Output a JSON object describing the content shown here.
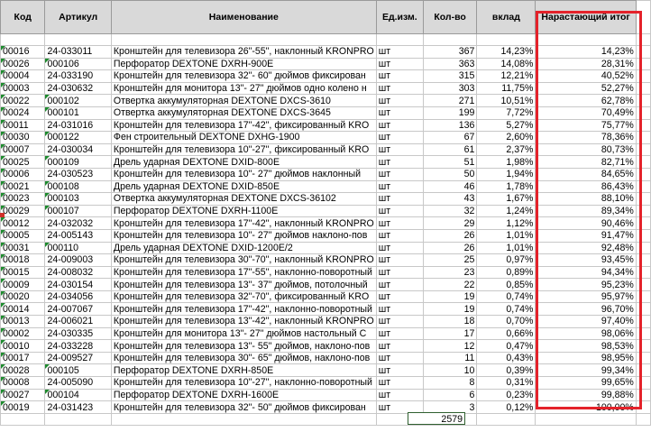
{
  "headers": {
    "code": "Код",
    "article": "Артикул",
    "name": "Наименование",
    "unit": "Ед.изм.",
    "qty": "Кол-во",
    "share": "вклад",
    "cumulative": "Нарастающий итог"
  },
  "rows": [
    {
      "code": "00016",
      "article": "24-033011",
      "name": "Кронштейн для телевизора 26\"-55\", наклонный KRONPRO",
      "unit": "шт",
      "qty": "367",
      "share": "14,23%",
      "cumulative": "14,23%"
    },
    {
      "code": "00026",
      "article": "000106",
      "name": "Перфоратор DEXTONE DXRH-900E",
      "unit": "шт",
      "qty": "363",
      "share": "14,08%",
      "cumulative": "28,31%"
    },
    {
      "code": "00004",
      "article": "24-033190",
      "name": "Кронштейн для телевизора  32\"- 60\" дюймов фиксирован",
      "unit": "шт",
      "qty": "315",
      "share": "12,21%",
      "cumulative": "40,52%"
    },
    {
      "code": "00003",
      "article": "24-030632",
      "name": "Кронштейн для монитора 13\"- 27\" дюймов одно колено н",
      "unit": "шт",
      "qty": "303",
      "share": "11,75%",
      "cumulative": "52,27%"
    },
    {
      "code": "00022",
      "article": "000102",
      "name": "Отвертка аккумуляторная DEXTONE DXCS-3610",
      "unit": "шт",
      "qty": "271",
      "share": "10,51%",
      "cumulative": "62,78%"
    },
    {
      "code": "00024",
      "article": "000101",
      "name": "Отвертка аккумуляторная DEXTONE DXCS-3645",
      "unit": "шт",
      "qty": "199",
      "share": "7,72%",
      "cumulative": "70,49%"
    },
    {
      "code": "00011",
      "article": "24-031016",
      "name": "Кронштейн для телевизора 17\"-42\", фиксированный KRO",
      "unit": "шт",
      "qty": "136",
      "share": "5,27%",
      "cumulative": "75,77%"
    },
    {
      "code": "00030",
      "article": "000122",
      "name": "Фен строительный  DEXTONE DXHG-1900",
      "unit": "шт",
      "qty": "67",
      "share": "2,60%",
      "cumulative": "78,36%"
    },
    {
      "code": "00007",
      "article": "24-030034",
      "name": "Кронштейн для телевизора 10\"-27\", фиксированный KRO",
      "unit": "шт",
      "qty": "61",
      "share": "2,37%",
      "cumulative": "80,73%"
    },
    {
      "code": "00025",
      "article": "000109",
      "name": "Дрель ударная DEXTONE DXID-800E",
      "unit": "шт",
      "qty": "51",
      "share": "1,98%",
      "cumulative": "82,71%"
    },
    {
      "code": "00006",
      "article": "24-030523",
      "name": "Кронштейн для телевизора 10\"- 27\" дюймов  наклонный",
      "unit": "шт",
      "qty": "50",
      "share": "1,94%",
      "cumulative": "84,65%"
    },
    {
      "code": "00021",
      "article": "000108",
      "name": "Дрель ударная DEXTONE DXID-850E",
      "unit": "шт",
      "qty": "46",
      "share": "1,78%",
      "cumulative": "86,43%"
    },
    {
      "code": "00023",
      "article": "000103",
      "name": "Отвертка аккумуляторная DEXTONE DXCS-36102",
      "unit": "шт",
      "qty": "43",
      "share": "1,67%",
      "cumulative": "88,10%"
    },
    {
      "code": "00029",
      "article": "000107",
      "name": "Перфоратор DEXTONE DXRH-1100E",
      "unit": "шт",
      "qty": "32",
      "share": "1,24%",
      "cumulative": "89,34%"
    },
    {
      "code": "00012",
      "article": "24-032032",
      "name": "Кронштейн для телевизора 17\"-42\", наклонный KRONPRO",
      "unit": "шт",
      "qty": "29",
      "share": "1,12%",
      "cumulative": "90,46%"
    },
    {
      "code": "00005",
      "article": "24-005143",
      "name": "Кронштейн для телевизора 10\"- 27\" дюймов  наклоно-пов",
      "unit": "шт",
      "qty": "26",
      "share": "1,01%",
      "cumulative": "91,47%"
    },
    {
      "code": "00031",
      "article": "000110",
      "name": "Дрель ударная DEXTONE DXID-1200E/2",
      "unit": "шт",
      "qty": "26",
      "share": "1,01%",
      "cumulative": "92,48%"
    },
    {
      "code": "00018",
      "article": "24-009003",
      "name": "Кронштейн для телевизора 30\"-70\", наклонный KRONPRO",
      "unit": "шт",
      "qty": "25",
      "share": "0,97%",
      "cumulative": "93,45%"
    },
    {
      "code": "00015",
      "article": "24-008032",
      "name": "Кронштейн для телевизора 17\"-55\", наклонно-поворотный",
      "unit": "шт",
      "qty": "23",
      "share": "0,89%",
      "cumulative": "94,34%"
    },
    {
      "code": "00009",
      "article": "24-030154",
      "name": "Кронштейн для телевизора 13\"- 37\" дюймов, потолочный",
      "unit": "шт",
      "qty": "22",
      "share": "0,85%",
      "cumulative": "95,23%"
    },
    {
      "code": "00020",
      "article": "24-034056",
      "name": "Кронштейн для телевизора 32\"-70\", фиксированный KRO",
      "unit": "шт",
      "qty": "19",
      "share": "0,74%",
      "cumulative": "95,97%"
    },
    {
      "code": "00014",
      "article": "24-007067",
      "name": "Кронштейн для телевизора 17\"-42\", наклонно-поворотный",
      "unit": "шт",
      "qty": "19",
      "share": "0,74%",
      "cumulative": "96,70%"
    },
    {
      "code": "00013",
      "article": "24-006021",
      "name": "Кронштейн для телевизора 13\"-42\", наклонный KRONPRO",
      "unit": "шт",
      "qty": "18",
      "share": "0,70%",
      "cumulative": "97,40%"
    },
    {
      "code": "00002",
      "article": "24-030335",
      "name": "Кронштейн для монитора 13\"- 27\" дюймов настольный  C",
      "unit": "шт",
      "qty": "17",
      "share": "0,66%",
      "cumulative": "98,06%"
    },
    {
      "code": "00010",
      "article": "24-033228",
      "name": "Кронштейн для телевизора 13\"- 55\" дюймов, наклоно-пов",
      "unit": "шт",
      "qty": "12",
      "share": "0,47%",
      "cumulative": "98,53%"
    },
    {
      "code": "00017",
      "article": "24-009527",
      "name": "Кронштейн для телевизора 30\"- 65\" дюймов, наклоно-пов",
      "unit": "шт",
      "qty": "11",
      "share": "0,43%",
      "cumulative": "98,95%"
    },
    {
      "code": "00028",
      "article": "000105",
      "name": "Перфоратор DEXTONE DXRH-850E",
      "unit": "шт",
      "qty": "10",
      "share": "0,39%",
      "cumulative": "99,34%"
    },
    {
      "code": "00008",
      "article": "24-005090",
      "name": "Кронштейн для телевизора 10\"-27\", наклонно-поворотный",
      "unit": "шт",
      "qty": "8",
      "share": "0,31%",
      "cumulative": "99,65%"
    },
    {
      "code": "00027",
      "article": "000104",
      "name": "Перфоратор DEXTONE DXRH-1600E",
      "unit": "шт",
      "qty": "6",
      "share": "0,23%",
      "cumulative": "99,88%"
    },
    {
      "code": "00019",
      "article": "24-031423",
      "name": "Кронштейн для телевизора 32\"- 50\" дюймов фиксирован",
      "unit": "шт",
      "qty": "3",
      "share": "0,12%",
      "cumulative": "100,00%"
    }
  ],
  "total": "2579",
  "colors": {
    "highlight": "#e4222a",
    "header_bg": "#d9d9d9",
    "triangle": "#1e8a2e"
  }
}
